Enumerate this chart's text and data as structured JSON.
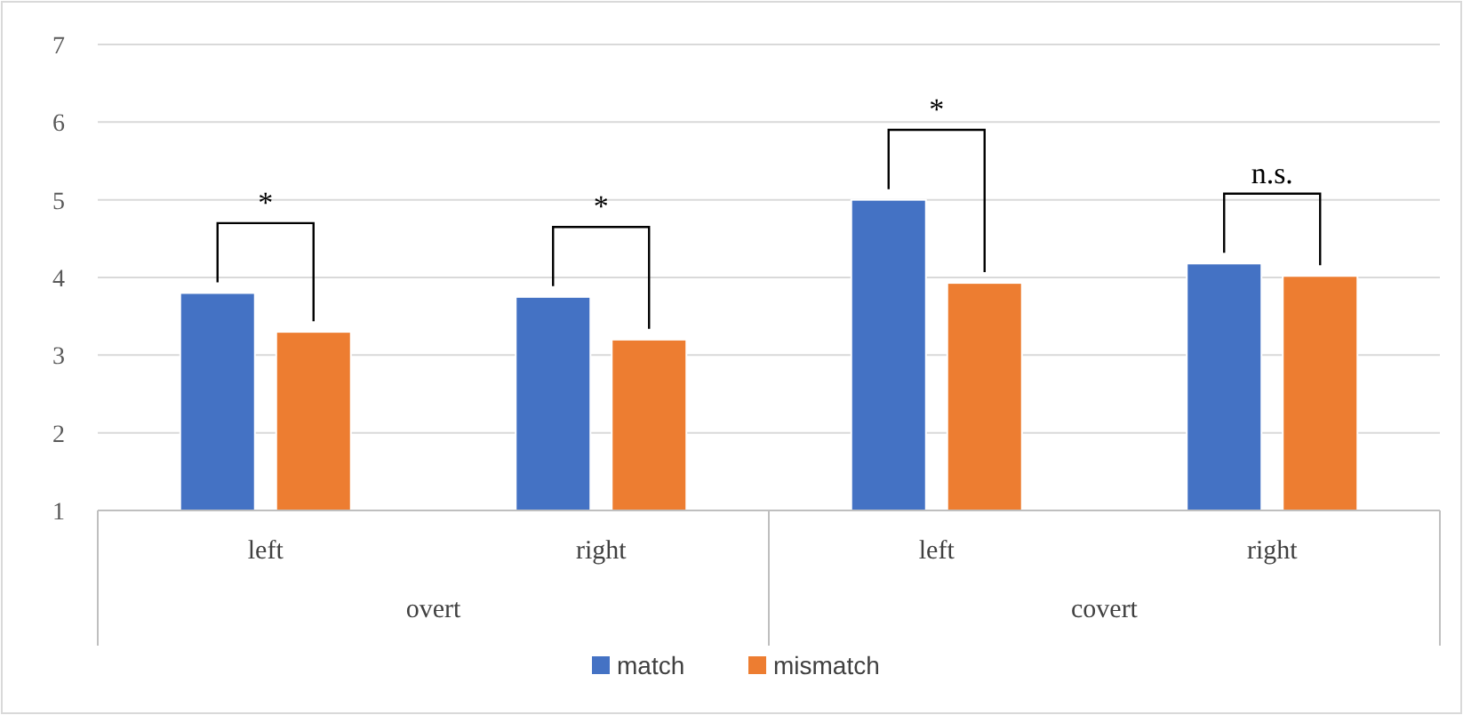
{
  "chart_data": {
    "type": "bar",
    "categories": [
      "left",
      "right",
      "left",
      "right"
    ],
    "series": [
      {
        "name": "match",
        "color": "#4472c4",
        "values": [
          3.8,
          3.75,
          5.0,
          4.18
        ]
      },
      {
        "name": "mismatch",
        "color": "#ed7d31",
        "values": [
          3.3,
          3.2,
          3.93,
          4.02
        ]
      }
    ],
    "ylim": [
      1,
      7
    ],
    "yticks": [
      1,
      2,
      3,
      4,
      5,
      6,
      7
    ],
    "grid": "y",
    "legend": "bottom",
    "annotations": [
      "*",
      "*",
      "*",
      "n.s.",
      "overt",
      "covert"
    ]
  }
}
